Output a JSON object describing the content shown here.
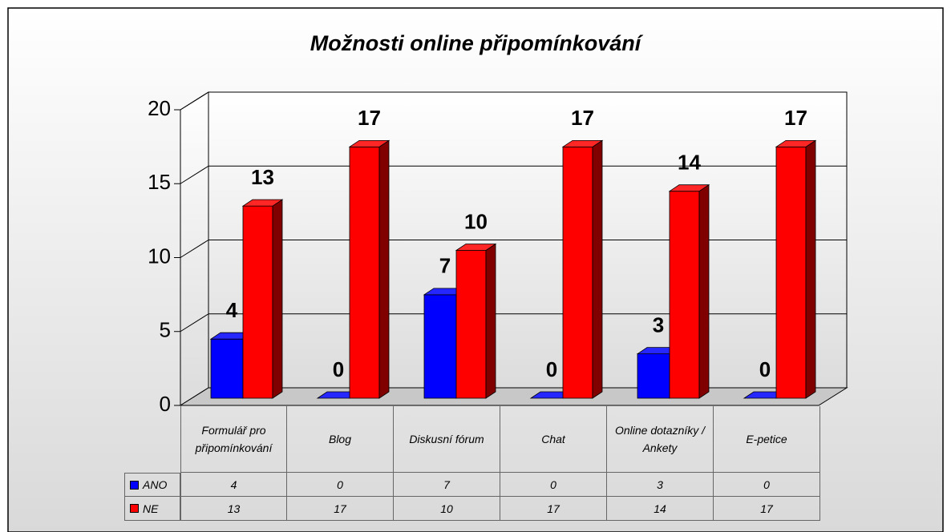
{
  "chart_data": {
    "type": "bar3d",
    "title": "Možnosti online připomínkování",
    "categories": [
      "Formulář pro připomínkování",
      "Blog",
      "Diskusní fórum",
      "Chat",
      "Online dotazníky / Ankety",
      "E-petice"
    ],
    "series": [
      {
        "name": "ANO",
        "color": "#0000ff",
        "values": [
          4,
          0,
          7,
          0,
          3,
          0
        ]
      },
      {
        "name": "NE",
        "color": "#ff0000",
        "values": [
          13,
          17,
          10,
          17,
          14,
          17
        ]
      }
    ],
    "ylim": [
      0,
      20
    ],
    "yticks": [
      0,
      5,
      10,
      15,
      20
    ],
    "grid": true
  }
}
